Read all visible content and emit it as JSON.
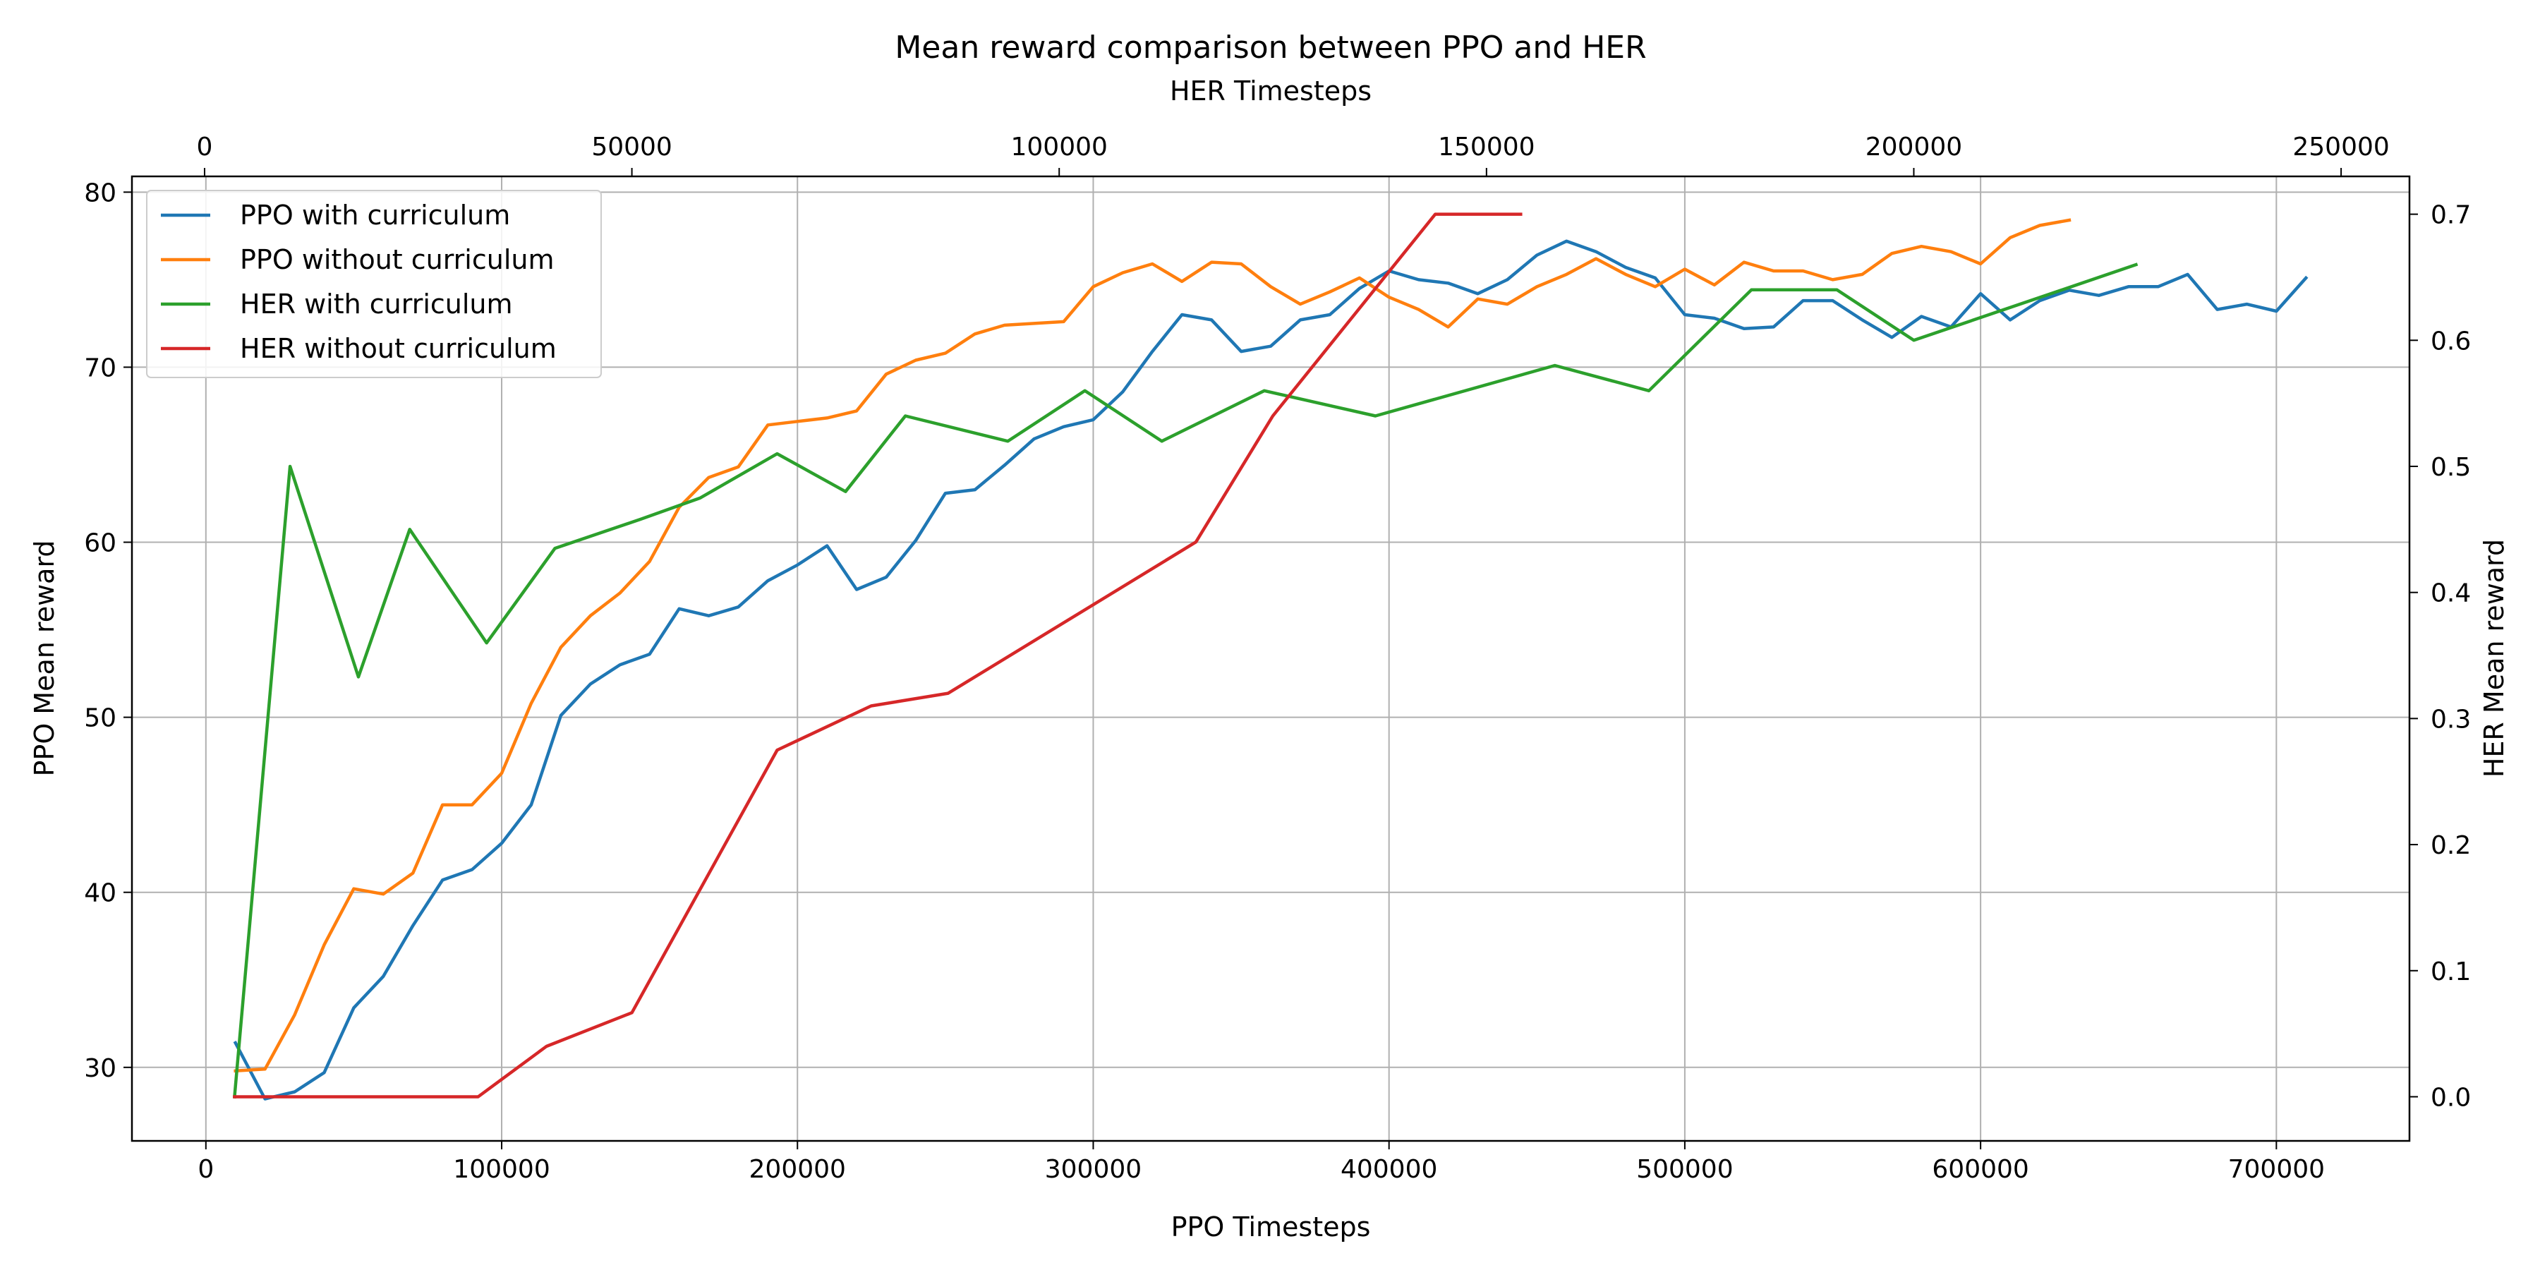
{
  "chart_data": {
    "type": "line",
    "title": "Mean reward comparison between PPO and HER",
    "xlabel_bottom": "PPO Timesteps",
    "xlabel_top": "HER Timesteps",
    "ylabel_left": "PPO Mean reward",
    "ylabel_right": "HER Mean reward",
    "xlim_bottom": [
      -25000,
      745000
    ],
    "ylim_left": [
      25.8,
      80.9
    ],
    "xlim_top": [
      -8500,
      258000
    ],
    "ylim_right": [
      -0.035,
      0.73
    ],
    "grid": true,
    "legend_position": "top-left",
    "xticks_bottom": [
      0,
      100000,
      200000,
      300000,
      400000,
      500000,
      600000,
      700000
    ],
    "yticks_left": [
      30,
      40,
      50,
      60,
      70,
      80
    ],
    "xticks_top": [
      0,
      50000,
      100000,
      150000,
      200000,
      250000
    ],
    "yticks_right": [
      0.0,
      0.1,
      0.2,
      0.3,
      0.4,
      0.5,
      0.6,
      0.7
    ],
    "yticks_right_labels": [
      "0.0",
      "0.1",
      "0.2",
      "0.3",
      "0.4",
      "0.5",
      "0.6",
      "0.7"
    ],
    "series": [
      {
        "name": "PPO with curriculum",
        "color": "#1f77b4",
        "axis": "ppo",
        "points": [
          [
            10000,
            31.4
          ],
          [
            20000,
            28.2
          ],
          [
            30000,
            28.6
          ],
          [
            40000,
            29.7
          ],
          [
            50000,
            33.4
          ],
          [
            60000,
            35.2
          ],
          [
            70000,
            38.1
          ],
          [
            80000,
            40.7
          ],
          [
            90000,
            41.3
          ],
          [
            100000,
            42.8
          ],
          [
            110000,
            45
          ],
          [
            120000,
            50.1
          ],
          [
            130000,
            51.9
          ],
          [
            140000,
            53
          ],
          [
            150000,
            53.6
          ],
          [
            160000,
            56.2
          ],
          [
            170000,
            55.8
          ],
          [
            180000,
            56.3
          ],
          [
            190000,
            57.8
          ],
          [
            200000,
            58.7
          ],
          [
            210000,
            59.8
          ],
          [
            220000,
            57.3
          ],
          [
            230000,
            58
          ],
          [
            240000,
            60.1
          ],
          [
            250000,
            62.8
          ],
          [
            260000,
            63
          ],
          [
            270000,
            64.4
          ],
          [
            280000,
            65.9
          ],
          [
            290000,
            66.6
          ],
          [
            300000,
            67
          ],
          [
            310000,
            68.6
          ],
          [
            320000,
            70.9
          ],
          [
            330000,
            73
          ],
          [
            340000,
            72.7
          ],
          [
            350000,
            70.9
          ],
          [
            360000,
            71.2
          ],
          [
            370000,
            72.7
          ],
          [
            380000,
            73
          ],
          [
            390000,
            74.5
          ],
          [
            400000,
            75.5
          ],
          [
            410000,
            75
          ],
          [
            420000,
            74.8
          ],
          [
            430000,
            74.2
          ],
          [
            440000,
            75
          ],
          [
            450000,
            76.4
          ],
          [
            460000,
            77.2
          ],
          [
            470000,
            76.6
          ],
          [
            480000,
            75.7
          ],
          [
            490000,
            75.1
          ],
          [
            500000,
            73
          ],
          [
            510000,
            72.8
          ],
          [
            520000,
            72.2
          ],
          [
            530000,
            72.3
          ],
          [
            540000,
            73.8
          ],
          [
            550000,
            73.8
          ],
          [
            560000,
            72.7
          ],
          [
            570000,
            71.7
          ],
          [
            580000,
            72.9
          ],
          [
            590000,
            72.3
          ],
          [
            600000,
            74.2
          ],
          [
            610000,
            72.7
          ],
          [
            620000,
            73.8
          ],
          [
            630000,
            74.4
          ],
          [
            640000,
            74.1
          ],
          [
            650000,
            74.6
          ],
          [
            660000,
            74.6
          ],
          [
            670000,
            75.3
          ],
          [
            680000,
            73.3
          ],
          [
            690000,
            73.6
          ],
          [
            700000,
            73.2
          ],
          [
            710000,
            75.1
          ]
        ]
      },
      {
        "name": "PPO without curriculum",
        "color": "#ff7f0e",
        "axis": "ppo",
        "points": [
          [
            10000,
            29.8
          ],
          [
            20000,
            29.9
          ],
          [
            30000,
            33
          ],
          [
            40000,
            37
          ],
          [
            50000,
            40.2
          ],
          [
            60000,
            39.9
          ],
          [
            70000,
            41.1
          ],
          [
            80000,
            45
          ],
          [
            90000,
            45
          ],
          [
            100000,
            46.8
          ],
          [
            110000,
            50.8
          ],
          [
            120000,
            54
          ],
          [
            130000,
            55.8
          ],
          [
            140000,
            57.1
          ],
          [
            150000,
            58.9
          ],
          [
            160000,
            62
          ],
          [
            170000,
            63.7
          ],
          [
            180000,
            64.3
          ],
          [
            190000,
            66.7
          ],
          [
            200000,
            66.9
          ],
          [
            210000,
            67.1
          ],
          [
            220000,
            67.5
          ],
          [
            230000,
            69.6
          ],
          [
            240000,
            70.4
          ],
          [
            250000,
            70.8
          ],
          [
            260000,
            71.9
          ],
          [
            270000,
            72.4
          ],
          [
            280000,
            72.5
          ],
          [
            290000,
            72.6
          ],
          [
            300000,
            74.6
          ],
          [
            310000,
            75.4
          ],
          [
            320000,
            75.9
          ],
          [
            330000,
            74.9
          ],
          [
            340000,
            76
          ],
          [
            350000,
            75.9
          ],
          [
            360000,
            74.6
          ],
          [
            370000,
            73.6
          ],
          [
            380000,
            74.3
          ],
          [
            390000,
            75.1
          ],
          [
            400000,
            74
          ],
          [
            410000,
            73.3
          ],
          [
            420000,
            72.3
          ],
          [
            430000,
            73.9
          ],
          [
            440000,
            73.6
          ],
          [
            450000,
            74.6
          ],
          [
            460000,
            75.3
          ],
          [
            470000,
            76.2
          ],
          [
            480000,
            75.3
          ],
          [
            490000,
            74.6
          ],
          [
            500000,
            75.6
          ],
          [
            510000,
            74.7
          ],
          [
            520000,
            76
          ],
          [
            530000,
            75.5
          ],
          [
            540000,
            75.5
          ],
          [
            550000,
            75
          ],
          [
            560000,
            75.3
          ],
          [
            570000,
            76.5
          ],
          [
            580000,
            76.9
          ],
          [
            590000,
            76.6
          ],
          [
            600000,
            75.9
          ],
          [
            610000,
            77.4
          ],
          [
            620000,
            78.1
          ],
          [
            630000,
            78.4
          ]
        ]
      },
      {
        "name": "HER with curriculum",
        "color": "#2ca02c",
        "axis": "her",
        "points": [
          [
            3500,
            0.0
          ],
          [
            10000,
            0.5
          ],
          [
            18000,
            0.333
          ],
          [
            24000,
            0.45
          ],
          [
            33000,
            0.36
          ],
          [
            41000,
            0.435
          ],
          [
            51000,
            0.458
          ],
          [
            58000,
            0.475
          ],
          [
            67000,
            0.51
          ],
          [
            75000,
            0.48
          ],
          [
            82000,
            0.54
          ],
          [
            94000,
            0.52
          ],
          [
            103000,
            0.56
          ],
          [
            112000,
            0.52
          ],
          [
            124000,
            0.56
          ],
          [
            137000,
            0.54
          ],
          [
            158000,
            0.58
          ],
          [
            169000,
            0.56
          ],
          [
            181000,
            0.64
          ],
          [
            191000,
            0.64
          ],
          [
            200000,
            0.6
          ],
          [
            226000,
            0.66
          ]
        ]
      },
      {
        "name": "HER without curriculum",
        "color": "#d62728",
        "axis": "her",
        "points": [
          [
            3500,
            0.0
          ],
          [
            32000,
            0.0
          ],
          [
            40000,
            0.04
          ],
          [
            50000,
            0.0667
          ],
          [
            67000,
            0.275
          ],
          [
            78000,
            0.31
          ],
          [
            87000,
            0.32
          ],
          [
            116000,
            0.44
          ],
          [
            125000,
            0.54
          ],
          [
            144000,
            0.7
          ],
          [
            154000,
            0.7
          ]
        ]
      }
    ]
  }
}
